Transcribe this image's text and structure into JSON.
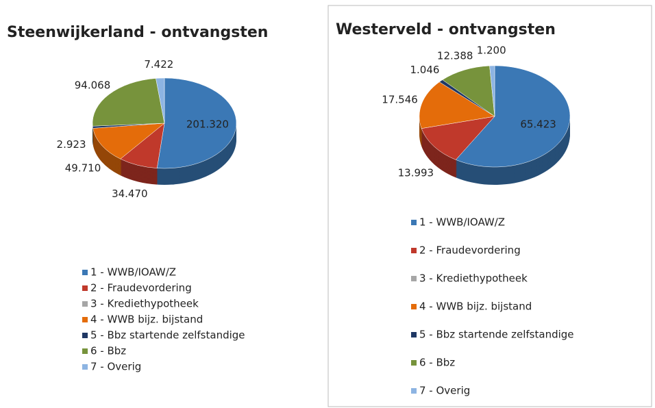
{
  "chart_data": [
    {
      "type": "pie",
      "title": "Steenwijkerland - ontvangsten",
      "categories": [
        "1 - WWB/IOAW/Z",
        "2 - Fraudevordering",
        "3 - Krediethypotheek",
        "4 - WWB bijz. bijstand",
        "5 - Bbz startende zelfstandige",
        "6 - Bbz",
        "7 - Overig"
      ],
      "values": [
        201320,
        34470,
        null,
        49710,
        2923,
        94068,
        7422
      ],
      "value_labels": [
        "201.320",
        "34.470",
        null,
        "49.710",
        "2.923",
        "94.068",
        "7.422"
      ],
      "colors": [
        "#3b78b5",
        "#c0392b",
        "#a6a6a6",
        "#e46c0a",
        "#1f3864",
        "#77933c",
        "#8db4e2"
      ]
    },
    {
      "type": "pie",
      "title": "Westerveld - ontvangsten",
      "categories": [
        "1 - WWB/IOAW/Z",
        "2 - Fraudevordering",
        "3 - Krediethypotheek",
        "4 - WWB bijz. bijstand",
        "5 - Bbz startende zelfstandige",
        "6 - Bbz",
        "7 - Overig"
      ],
      "values": [
        65423,
        13993,
        null,
        17546,
        1046,
        12388,
        1200
      ],
      "value_labels": [
        "65.423",
        "13.993",
        null,
        "17.546",
        "1.046",
        "12.388",
        "1.200"
      ],
      "colors": [
        "#3b78b5",
        "#c0392b",
        "#a6a6a6",
        "#e46c0a",
        "#1f3864",
        "#77933c",
        "#8db4e2"
      ]
    }
  ]
}
